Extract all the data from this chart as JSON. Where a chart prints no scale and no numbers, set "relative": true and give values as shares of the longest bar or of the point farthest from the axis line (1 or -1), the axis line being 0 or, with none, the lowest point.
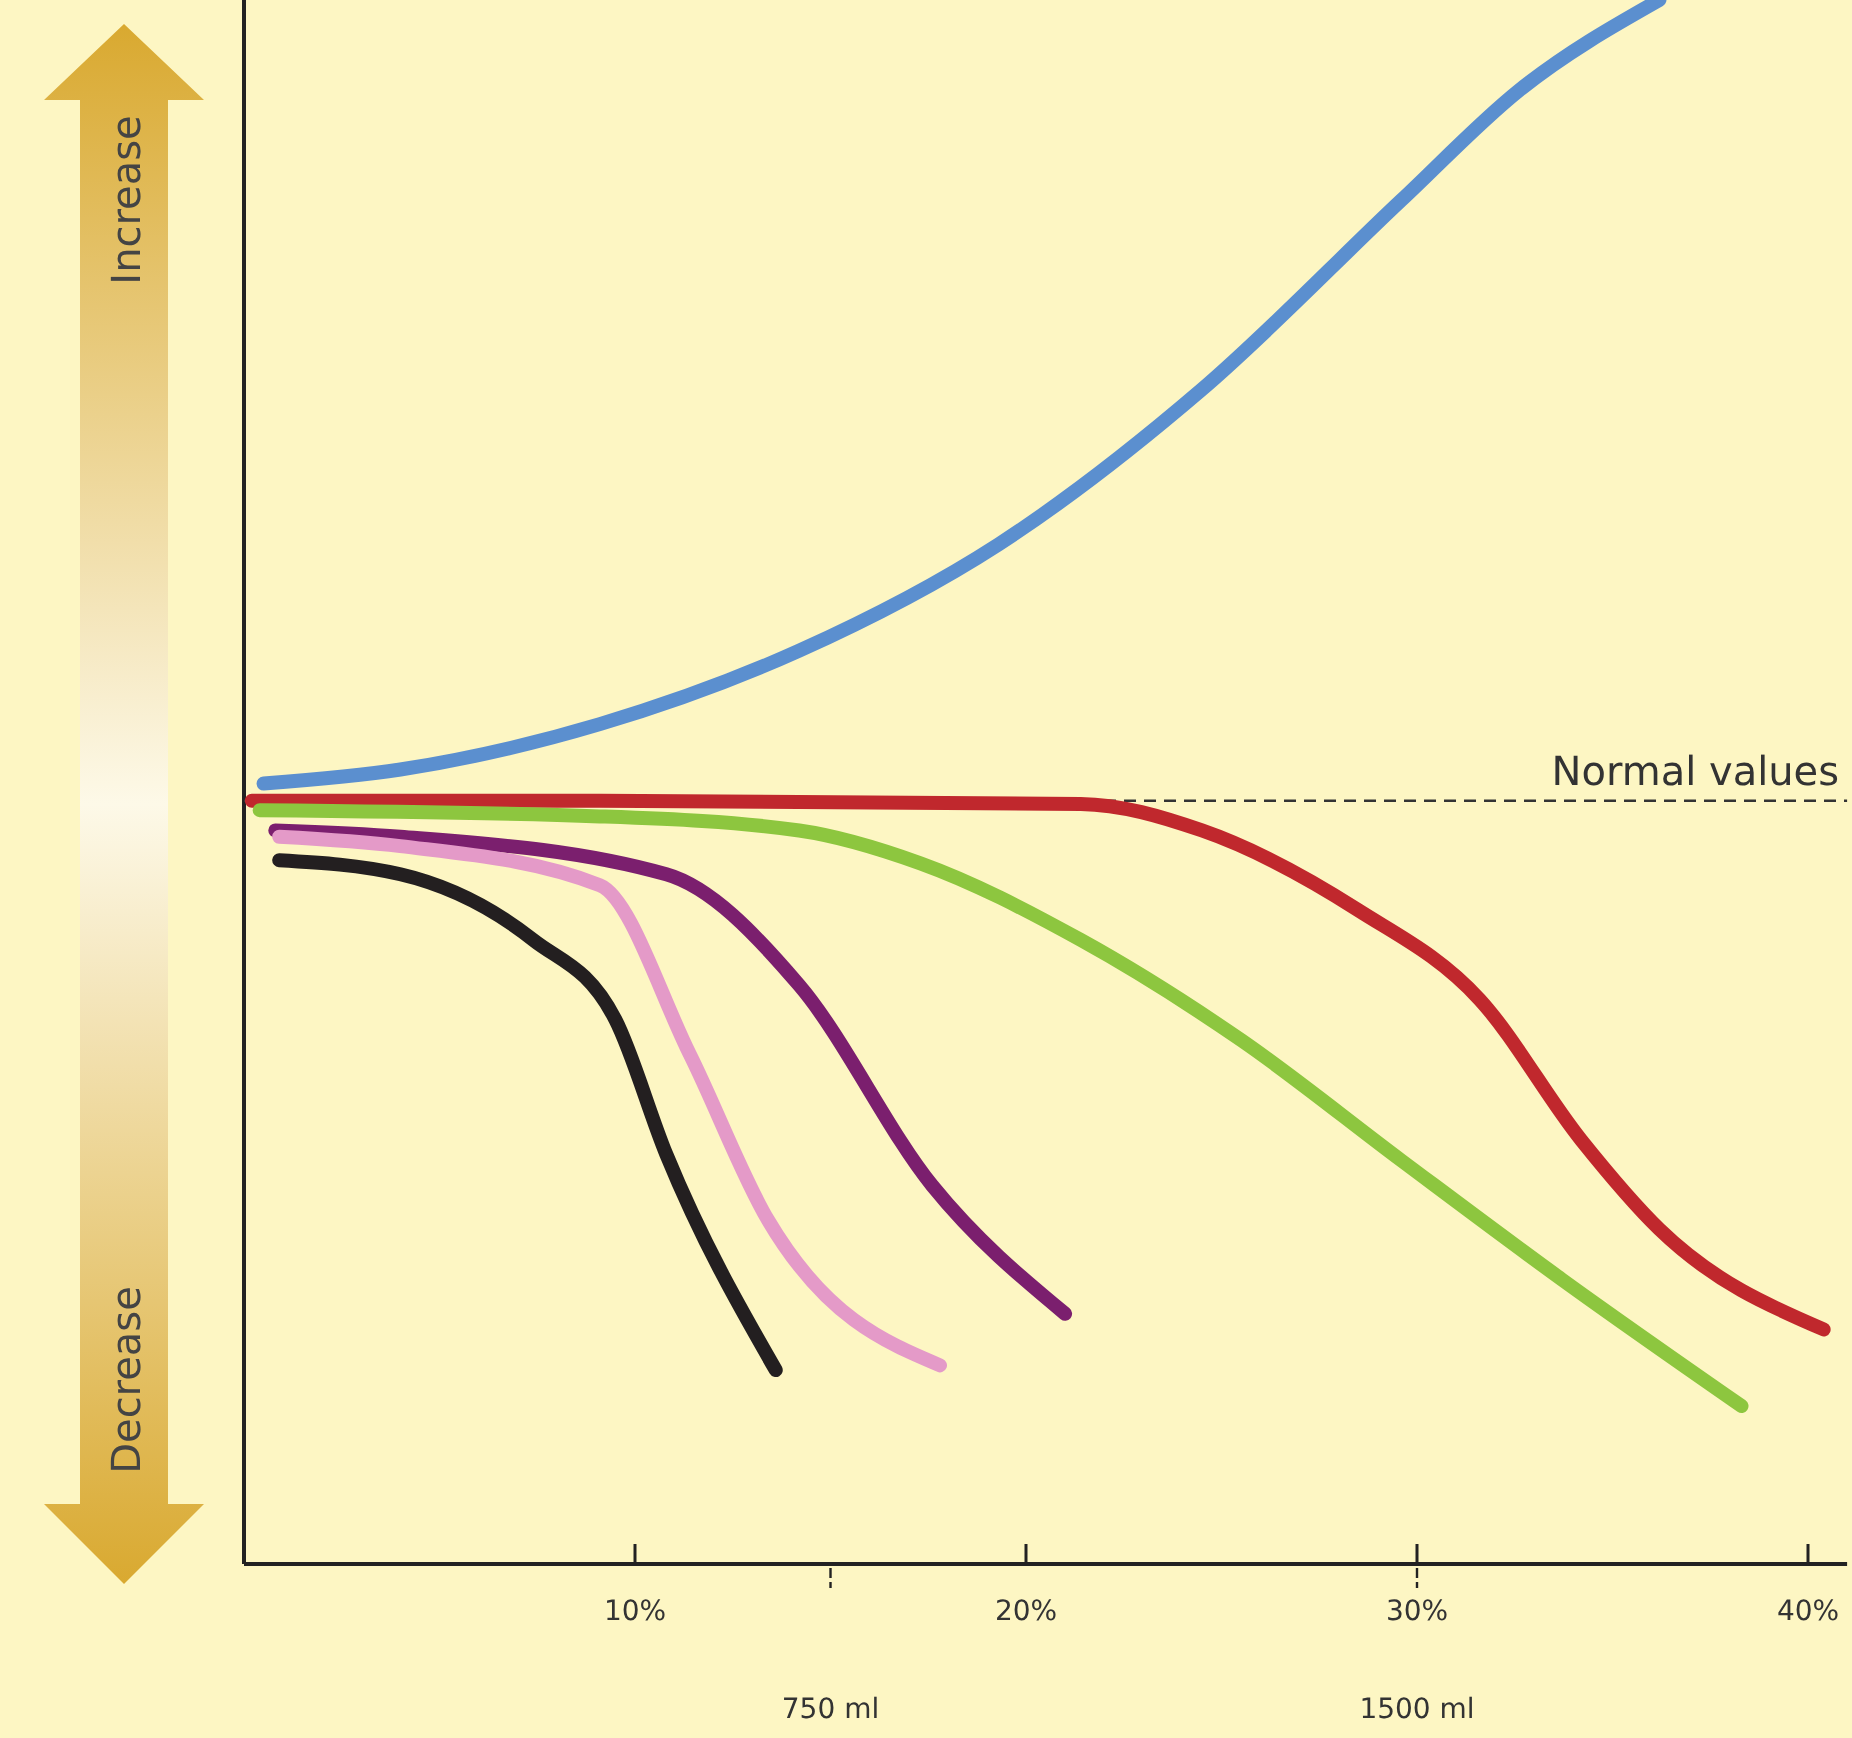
{
  "chart_data": {
    "type": "line",
    "relative": true,
    "xlim": [
      0,
      41
    ],
    "xticks": [
      {
        "value": 10,
        "label": "10%"
      },
      {
        "value": 20,
        "label": "20%"
      },
      {
        "value": 30,
        "label": "30%"
      },
      {
        "value": 40,
        "label": "40%"
      }
    ],
    "x2lim": [
      0,
      2050
    ],
    "x2ticks": [
      {
        "value": 750,
        "label": "750 ml"
      },
      {
        "value": 1500,
        "label": "1500 ml"
      }
    ],
    "ref_lines": [
      {
        "axis": "y",
        "value": 0.488,
        "label": "Normal values",
        "line_style": "dashed",
        "color": "#333333"
      }
    ],
    "annotations": [
      "Increase",
      "Decrease"
    ],
    "grid": false,
    "marker": "none",
    "line_style": "solid",
    "series": [
      {
        "color": "#5b8fcf",
        "x": [
          0.5,
          4.0,
          9.1,
          14.2,
          19.3,
          24.5,
          29.6,
          32.6,
          36.2
        ],
        "values": [
          0.499,
          0.508,
          0.537,
          0.584,
          0.652,
          0.751,
          0.872,
          0.942,
          1
        ]
      },
      {
        "color": "#c0282d",
        "x": [
          0.2,
          9.1,
          21.4,
          24.5,
          28.5,
          31.6,
          34.2,
          36.2,
          40.4
        ],
        "values": [
          0.488,
          0.488,
          0.486,
          0.469,
          0.418,
          0.361,
          0.271,
          0.214,
          0.15
        ]
      },
      {
        "color": "#8dc63f",
        "x": [
          0.4,
          9.1,
          14.2,
          17.3,
          21.4,
          25.5,
          29.6,
          33.7,
          38.3
        ],
        "values": [
          0.482,
          0.478,
          0.469,
          0.448,
          0.399,
          0.335,
          0.258,
          0.182,
          0.101
        ]
      },
      {
        "color": "#7b1f6e",
        "x": [
          0.8,
          4.0,
          10.8,
          14.2,
          17.6,
          21.0
        ],
        "values": [
          0.469,
          0.465,
          0.441,
          0.37,
          0.242,
          0.16
        ]
      },
      {
        "color": "#e49ac8",
        "x": [
          0.9,
          4.0,
          9.1,
          11.4,
          13.4,
          17.8
        ],
        "values": [
          0.465,
          0.459,
          0.434,
          0.326,
          0.22,
          0.127
        ]
      },
      {
        "color": "#231f20",
        "x": [
          0.9,
          4.0,
          7.4,
          9.5,
          10.8,
          13.6
        ],
        "values": [
          0.45,
          0.441,
          0.399,
          0.348,
          0.262,
          0.124
        ]
      }
    ]
  }
}
